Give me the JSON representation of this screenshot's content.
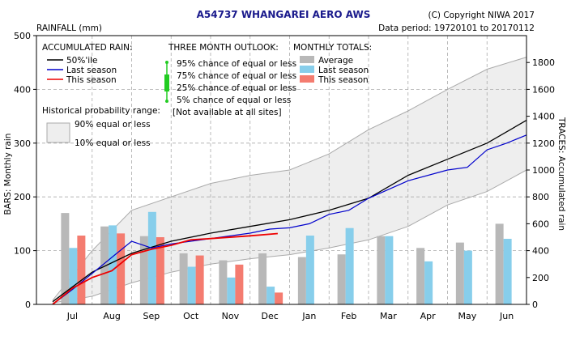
{
  "chart_data": {
    "type": "bar",
    "title": "A54737  WHANGAREI AERO AWS",
    "copyright": "(C) Copyright NIWA  2017",
    "data_period": "Data period:  19720101  to  20170112",
    "y_units_left": "RAINFALL (mm)",
    "ylabel_left": "BARS: Monthly rain",
    "ylabel_right": "TRACES: Accumulated rain",
    "ylim_left": [
      0,
      500
    ],
    "ylim_right": [
      0,
      2000
    ],
    "yticks_left": [
      0,
      100,
      200,
      300,
      400,
      500
    ],
    "yticks_right": [
      0,
      200,
      400,
      600,
      800,
      1000,
      1200,
      1400,
      1600,
      1800
    ],
    "categories": [
      "Jul",
      "Aug",
      "Sep",
      "Oct",
      "Nov",
      "Dec",
      "Jan",
      "Feb",
      "Mar",
      "Apr",
      "May",
      "Jun"
    ],
    "series": [
      {
        "name": "Average",
        "color": "#b8b8b8",
        "values": [
          170,
          145,
          127,
          95,
          82,
          95,
          88,
          93,
          127,
          105,
          115,
          150
        ]
      },
      {
        "name": "Last season",
        "color": "#87ceeb",
        "values": [
          105,
          147,
          172,
          70,
          50,
          33,
          128,
          142,
          127,
          80,
          100,
          122
        ]
      },
      {
        "name": "This season",
        "color": "#f47c70",
        "values": [
          128,
          132,
          125,
          91,
          74,
          22,
          null,
          null,
          null,
          null,
          null,
          null
        ]
      }
    ],
    "traces_right_axis": {
      "median_50": [
        [
          0,
          20
        ],
        [
          1,
          240
        ],
        [
          2,
          380
        ],
        [
          3,
          470
        ],
        [
          4,
          530
        ],
        [
          5,
          580
        ],
        [
          6,
          630
        ],
        [
          7,
          700
        ],
        [
          8,
          790
        ],
        [
          9,
          960
        ],
        [
          10,
          1080
        ],
        [
          11,
          1200
        ],
        [
          12,
          1370
        ]
      ],
      "last_season": [
        [
          0,
          0
        ],
        [
          0.5,
          110
        ],
        [
          1,
          230
        ],
        [
          1.5,
          350
        ],
        [
          2,
          470
        ],
        [
          2.5,
          420
        ],
        [
          3,
          450
        ],
        [
          4,
          490
        ],
        [
          5,
          530
        ],
        [
          5.5,
          560
        ],
        [
          6,
          570
        ],
        [
          6.5,
          600
        ],
        [
          7,
          670
        ],
        [
          7.5,
          700
        ],
        [
          8,
          790
        ],
        [
          9,
          920
        ],
        [
          10,
          1000
        ],
        [
          10.5,
          1020
        ],
        [
          11,
          1150
        ],
        [
          11.5,
          1200
        ],
        [
          12,
          1260
        ]
      ],
      "this_season": [
        [
          0,
          0
        ],
        [
          0.5,
          120
        ],
        [
          1,
          200
        ],
        [
          1.5,
          250
        ],
        [
          2,
          370
        ],
        [
          2.5,
          410
        ],
        [
          3,
          440
        ],
        [
          3.5,
          480
        ],
        [
          4,
          490
        ],
        [
          5,
          510
        ],
        [
          5.7,
          527
        ]
      ],
      "range_90": [
        [
          0,
          30
        ],
        [
          1,
          400
        ],
        [
          2,
          700
        ],
        [
          3,
          800
        ],
        [
          4,
          900
        ],
        [
          5,
          960
        ],
        [
          6,
          1000
        ],
        [
          7,
          1120
        ],
        [
          8,
          1300
        ],
        [
          9,
          1440
        ],
        [
          10,
          1600
        ],
        [
          11,
          1750
        ],
        [
          12,
          1840
        ]
      ],
      "range_10": [
        [
          0,
          10
        ],
        [
          1,
          60
        ],
        [
          2,
          160
        ],
        [
          3,
          240
        ],
        [
          4,
          300
        ],
        [
          5,
          340
        ],
        [
          6,
          370
        ],
        [
          7,
          420
        ],
        [
          8,
          480
        ],
        [
          9,
          580
        ],
        [
          10,
          740
        ],
        [
          11,
          840
        ],
        [
          12,
          1000
        ]
      ]
    },
    "legend": {
      "accumulated": {
        "header": "ACCUMULATED RAIN:",
        "items": [
          "50%'ile",
          "Last season",
          "This season"
        ]
      },
      "outlook": {
        "header": "THREE MONTH OUTLOOK:",
        "items": [
          "95% chance of equal or less",
          "75% chance of equal or less",
          "25% chance of equal or less",
          "5% chance of equal or less"
        ],
        "note": "[Not available at all sites]"
      },
      "monthly": {
        "header": "MONTHLY TOTALS:",
        "items": [
          "Average",
          "Last season",
          "This season"
        ]
      },
      "range": {
        "header": "Historical probability range:",
        "items": [
          "90% equal or less",
          "10% equal or less"
        ]
      }
    },
    "colors": {
      "median": "#000000",
      "last_trace": "#0000cc",
      "this_trace": "#ee0000",
      "band_fill": "#eeeeee",
      "band_edge": "#aaaaaa",
      "outlook": "#22cc22",
      "title": "#1a1a8c"
    },
    "grid": true
  }
}
